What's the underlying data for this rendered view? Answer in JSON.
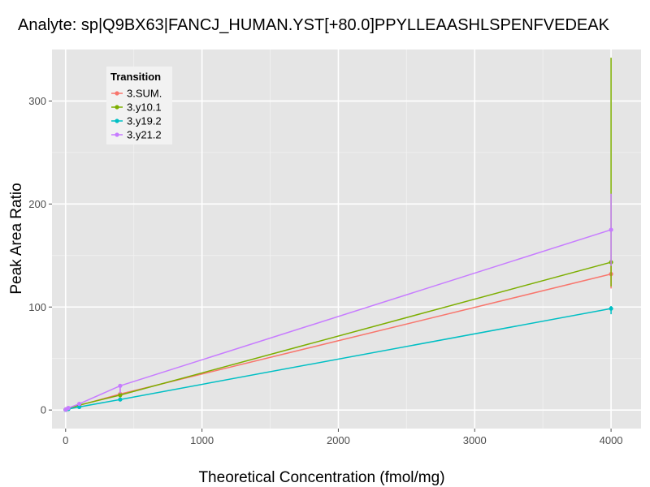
{
  "chart_data": {
    "type": "line",
    "title": "Analyte: sp|Q9BX63|FANCJ_HUMAN.YST[+80.0]PPYLLEAASHLSPENFVEDEAK",
    "xlabel": "Theoretical Concentration (fmol/mg)",
    "ylabel": "Peak Area Ratio",
    "xlim": [
      -100,
      4220
    ],
    "ylim": [
      -18,
      350
    ],
    "x_ticks": [
      0,
      1000,
      2000,
      3000,
      4000
    ],
    "x_tick_labels": [
      "0",
      "1000",
      "2000",
      "3000",
      "4000"
    ],
    "y_ticks": [
      0,
      100,
      200,
      300
    ],
    "y_tick_labels": [
      "0",
      "100",
      "200",
      "300"
    ],
    "grid": true,
    "legend_position": "top-left",
    "legend_title": "Transition",
    "x": [
      0,
      4,
      20,
      100,
      400,
      4000
    ],
    "series": [
      {
        "name": "3.SUM.",
        "color": "#F8766D",
        "values": [
          0.3,
          0.7,
          1.5,
          4.5,
          15.5,
          132
        ],
        "error_bars": [
          null,
          null,
          null,
          null,
          [
            12,
            21
          ],
          [
            118,
            146
          ]
        ]
      },
      {
        "name": "3.y10.1",
        "color": "#7CAE00",
        "values": [
          0.3,
          0.7,
          1.6,
          4.8,
          14.5,
          143.5
        ],
        "error_bars": [
          null,
          null,
          null,
          null,
          null,
          [
            120,
            342
          ]
        ]
      },
      {
        "name": "3.y19.2",
        "color": "#00BFC4",
        "values": [
          0.2,
          0.5,
          1.0,
          3.0,
          10.2,
          98.5
        ],
        "error_bars": [
          null,
          null,
          null,
          null,
          null,
          [
            93,
            101
          ]
        ]
      },
      {
        "name": "3.y21.2",
        "color": "#C77CFF",
        "values": [
          0.3,
          0.8,
          2.0,
          6.0,
          23.5,
          175
        ],
        "error_bars": [
          null,
          null,
          null,
          null,
          [
            16,
            24
          ],
          [
            140,
            210
          ]
        ]
      }
    ]
  }
}
